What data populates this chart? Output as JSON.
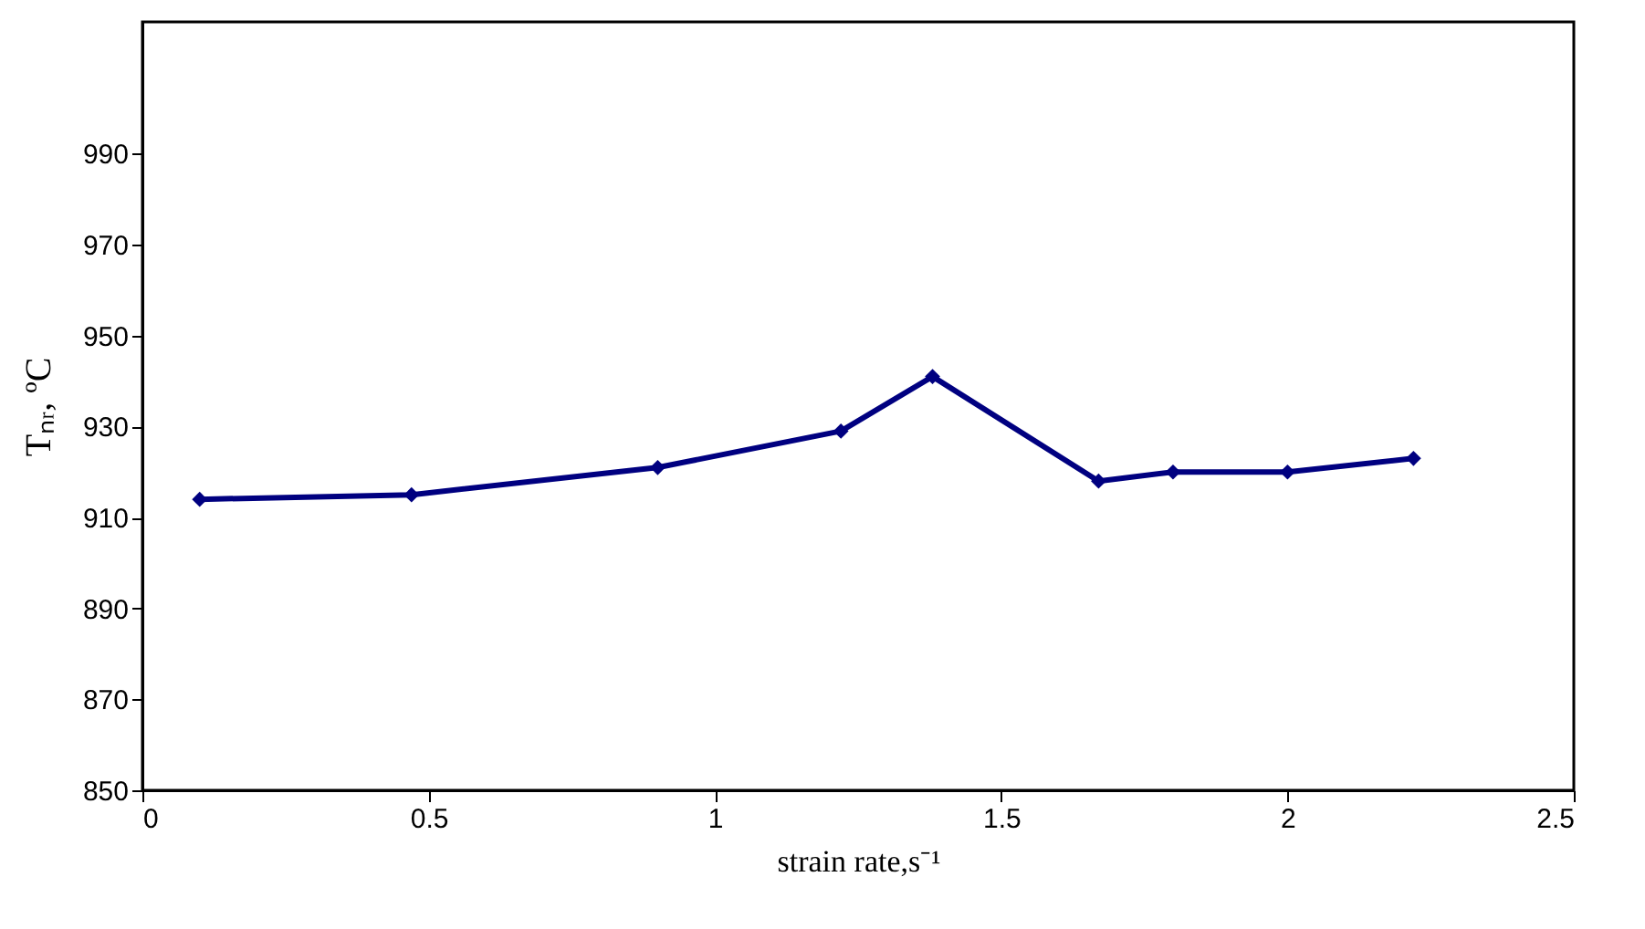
{
  "chart_data": {
    "type": "line",
    "xlabel": "strain rate,s⁻¹",
    "ylabel": "Tₙᵣ, ºC",
    "x": [
      0.1,
      0.47,
      0.9,
      1.22,
      1.38,
      1.67,
      1.8,
      2.0,
      2.22
    ],
    "series": [
      {
        "color": "#000080",
        "values": [
          914,
          915,
          921,
          929,
          941,
          918,
          920,
          920,
          923
        ]
      }
    ],
    "xlim": [
      0,
      2.5
    ],
    "xticks": [
      0,
      0.5,
      1,
      1.5,
      2,
      2.5
    ],
    "ylim": [
      850,
      1019
    ],
    "yticks": [
      850,
      870,
      890,
      910,
      930,
      950,
      970,
      990
    ],
    "grid": false,
    "marker": "diamond",
    "line_style": "solid"
  }
}
